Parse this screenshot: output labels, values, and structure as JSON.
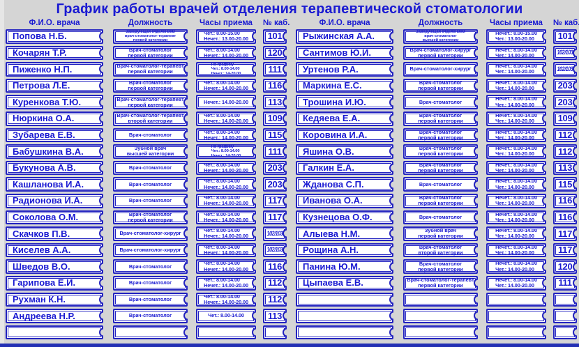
{
  "title": "График работы врачей отделения терапевтической стоматологии",
  "columns": {
    "name": "Ф.И.О. врача",
    "position": "Должность",
    "hours": "Часы приема",
    "cabinet": "№ каб."
  },
  "colors": {
    "accent_blue": "#2323c0",
    "text_blue": "#1a1ad2",
    "background": "#d5d5d5",
    "plate_white": "#ffffff",
    "bottom_edge_blue": "#2330b4"
  },
  "left": {
    "rows": [
      {
        "name": "Попова Н.Б.",
        "position": [
          "Заведующая отделением",
          "врач-стоматолог-терапевт",
          "первой категории"
        ],
        "hours": [
          "Чет.: 8.00-15.00",
          "Нечет.: 13.00-20.00"
        ],
        "cabinet": "101"
      },
      {
        "name": "Кочарян Т.Р.",
        "position": [
          "Врач-стоматолог",
          "первой категории"
        ],
        "hours": [
          "Чет.: 8.00-14.00",
          "Нечет.: 14.00-20.00"
        ],
        "cabinet": "120"
      },
      {
        "name": "Пиженко Н.П.",
        "position": [
          "Врач-стоматолог-терапевт",
          "первой категории"
        ],
        "hours": [
          "По графику",
          "Чет.: 8.00-14.00",
          "Нечет.: 14-20.00"
        ],
        "cabinet": "111"
      },
      {
        "name": "Петрова Л.Е.",
        "position": [
          "Врач-стоматолог",
          "первой категории"
        ],
        "hours": [
          "Чет.: 8.00-14.00",
          "Нечет.: 14.00-20.00"
        ],
        "cabinet": "116"
      },
      {
        "name": "Куренкова Т.Ю.",
        "position": [
          "Врач-стоматолог-терапевт",
          "первой категории"
        ],
        "hours": [
          "Нечет.: 14.00-20.00"
        ],
        "cabinet": "113"
      },
      {
        "name": "Нюркина О.А.",
        "position": [
          "Врач-стоматолог-терапевт",
          "второй категории"
        ],
        "hours": [
          "Чет.: 8.00-14.00",
          "Нечет.: 14.00-20.00"
        ],
        "cabinet": "109"
      },
      {
        "name": "Зубарева Е.В.",
        "position": [
          "Врач-стоматолог"
        ],
        "hours": [
          "Чет.: 8.00-14.00",
          "Нечет.: 14.00-20.00"
        ],
        "cabinet": "115"
      },
      {
        "name": "Бабушкина В.А.",
        "position": [
          "Зубной врач",
          "высшей категории"
        ],
        "hours": [
          "По графику",
          "Чет.: 8.00-14.00",
          "Нечет.: 14-20.00"
        ],
        "cabinet": "111"
      },
      {
        "name": "Букунова А.В.",
        "position": [
          "Врач-стоматолог"
        ],
        "hours": [
          "Чет.: 8.00-14.00",
          "Нечет.: 14.00-20.00"
        ],
        "cabinet": "203"
      },
      {
        "name": "Кашланова И.А.",
        "position": [
          "Врач-стоматолог"
        ],
        "hours": [
          "Чет.: 8.00-14.00",
          "Нечет.: 14.00-20.00"
        ],
        "cabinet": "203"
      },
      {
        "name": "Радионова И.А.",
        "position": [
          "Врач-стоматолог"
        ],
        "hours": [
          "Чет.: 8.00-14.00",
          "Нечет.: 14.00-20.00"
        ],
        "cabinet": "117"
      },
      {
        "name": "Соколова О.М.",
        "position": [
          "Врач-стоматолог",
          "первой категории"
        ],
        "hours": [
          "Чет.: 8.00-14.00",
          "Нечет.: 14.00-20.00"
        ],
        "cabinet": "117"
      },
      {
        "name": "Скачков П.В.",
        "position": [
          "Врач-стоматолог-хирург"
        ],
        "hours": [
          "Чет.: 8.00-14.00",
          "Нечет.: 14.00-20.00"
        ],
        "cabinet": "102/103"
      },
      {
        "name": "Киселев А.А.",
        "position": [
          "Врач-стоматолог-хирург"
        ],
        "hours": [
          "Чет.: 8.00-14.00",
          "Нечет.: 14.00-20.00"
        ],
        "cabinet": "102/103"
      },
      {
        "name": "Шведов В.О.",
        "position": [
          "Врач-стоматолог"
        ],
        "hours": [
          "Чет.: 8.00-14.00",
          "Нечет.: 14.00-20.00"
        ],
        "cabinet": "116"
      },
      {
        "name": "Гарипова Е.И.",
        "position": [
          "Врач-стоматолог"
        ],
        "hours": [
          "Чет.: 8.00-14.00",
          "Нечет.: 14.00-20.00"
        ],
        "cabinet": "112"
      },
      {
        "name": "Рухман К.Н.",
        "position": [
          "Врач-стоматолог"
        ],
        "hours": [
          "Чет.: 8.00-14.00",
          "Нечет.: 14.00-20.00"
        ],
        "cabinet": "112"
      },
      {
        "name": "Андреева Н.Р.",
        "position": [
          "Врач-стоматолог"
        ],
        "hours": [
          "Чет.: 8.00-14.00"
        ],
        "cabinet": "113"
      },
      {
        "name": "",
        "position": [],
        "hours": [],
        "cabinet": ""
      }
    ]
  },
  "right": {
    "rows": [
      {
        "name": "Рыжинская А.А.",
        "position": [
          "Заведующая отделением",
          "врач-стоматолог",
          "высшей категории"
        ],
        "hours": [
          "Нечет.: 8.00-15.00",
          "Чет.: 13.00-20.00"
        ],
        "cabinet": "101"
      },
      {
        "name": "Сантимов Ю.И.",
        "position": [
          "Врач-стоматолог-хирург",
          "первой категории"
        ],
        "hours": [
          "Нечет.: 8.00-14.00",
          "Чет.: 14.00-20.00"
        ],
        "cabinet": "102/103"
      },
      {
        "name": "Уртенов Р.А.",
        "position": [
          "Врач-стоматолог-хирург"
        ],
        "hours": [
          "Нечет.: 8.00-14.00",
          "Чет.: 14.00-20.00"
        ],
        "cabinet": "102/103"
      },
      {
        "name": "Маркина Е.С.",
        "position": [
          "Врач-стоматолог",
          "первой категории"
        ],
        "hours": [
          "Нечет.: 8.00-14.00",
          "Чет.: 14.00-20.00"
        ],
        "cabinet": "203"
      },
      {
        "name": "Трошина И.Ю.",
        "position": [
          "Врач-стоматолог"
        ],
        "hours": [
          "Нечет.: 8.00-14.00",
          "Чет.: 14.00-20.00"
        ],
        "cabinet": "203"
      },
      {
        "name": "Кедяева Е.А.",
        "position": [
          "Врач-стоматолог",
          "первой категории"
        ],
        "hours": [
          "Нечет.: 8.00-14.00",
          "Чет.: 14.00-20.00"
        ],
        "cabinet": "109"
      },
      {
        "name": "Коровина И.А.",
        "position": [
          "Врач-стоматолог",
          "первой категории"
        ],
        "hours": [
          "Нечет.: 8.00-14.00",
          "Чет.: 14.00-20.00"
        ],
        "cabinet": "112"
      },
      {
        "name": "Яшина О.В.",
        "position": [
          "Врач-стоматолог",
          "первой категории"
        ],
        "hours": [
          "Нечет.: 8.00-14.00",
          "Чет.: 14.00-20.00"
        ],
        "cabinet": "112"
      },
      {
        "name": "Галкин Е.А.",
        "position": [
          "Врач-стоматолог",
          "первой категории"
        ],
        "hours": [
          "Нечет.: 8.00-14.00",
          "Чет.: 14.00-20.00"
        ],
        "cabinet": "113"
      },
      {
        "name": "Жданова С.П.",
        "position": [
          "Врач-стоматолог"
        ],
        "hours": [
          "Нечет.: 8.00-14.00",
          "Чет.: 14.00-20.00"
        ],
        "cabinet": "115"
      },
      {
        "name": "Иванова О.А.",
        "position": [
          "Врач-стоматолог",
          "первой категории"
        ],
        "hours": [
          "Нечет.: 8.00-14.00",
          "Чет.: 14.00-20.00"
        ],
        "cabinet": "116"
      },
      {
        "name": "Кузнецова О.Ф.",
        "position": [
          "Врач-стоматолог"
        ],
        "hours": [
          "Нечет.: 8.00-14.00",
          "Чет.: 14.00-20.00"
        ],
        "cabinet": "116"
      },
      {
        "name": "Алыева Н.М.",
        "position": [
          "Зубной врач",
          "первой категории"
        ],
        "hours": [
          "Нечет.: 8.00-14.00",
          "Чет.: 14.00-20.00"
        ],
        "cabinet": "117"
      },
      {
        "name": "Рощина А.Н.",
        "position": [
          "Врач-стоматолог",
          "второй категории"
        ],
        "hours": [
          "Нечет.: 8.00-14.00",
          "Чет.: 14.00-20.00"
        ],
        "cabinet": "117"
      },
      {
        "name": "Панина Ю.М.",
        "position": [
          "Врач-стоматолог",
          "первой категории"
        ],
        "hours": [
          "Нечет.: 8.00-14.00",
          "Чет.: 14.00-20.00"
        ],
        "cabinet": "120"
      },
      {
        "name": "Цыпаева Е.В.",
        "position": [
          "Врач-стоматолог-терапевт",
          "первой категории"
        ],
        "hours": [
          "Нечет.: 8.00-14.00",
          "Чет.: 14.00-20.00"
        ],
        "cabinet": "111"
      },
      {
        "name": "",
        "position": [],
        "hours": [],
        "cabinet": ""
      },
      {
        "name": "",
        "position": [],
        "hours": [],
        "cabinet": ""
      },
      {
        "name": "",
        "position": [],
        "hours": [],
        "cabinet": ""
      }
    ]
  }
}
